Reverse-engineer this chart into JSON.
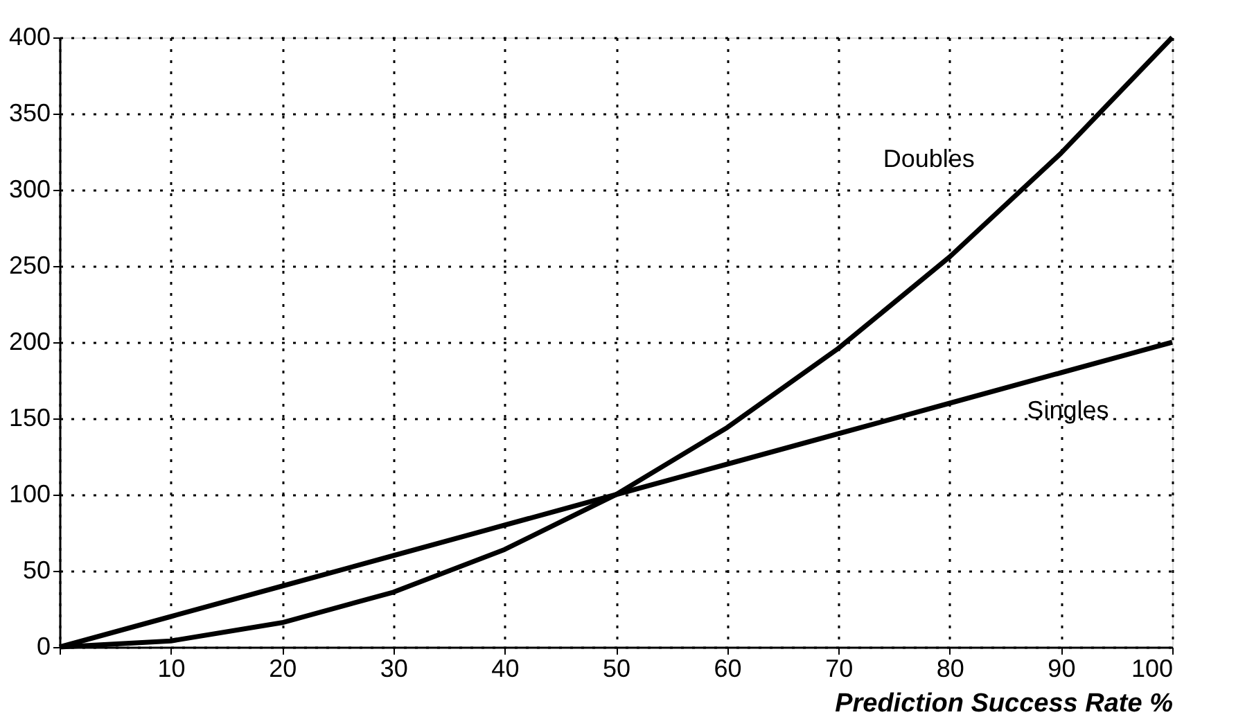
{
  "chart_data": {
    "type": "line",
    "xlabel": "Prediction Success Rate %",
    "x": [
      0,
      10,
      20,
      30,
      40,
      50,
      60,
      70,
      80,
      90,
      100
    ],
    "series": [
      {
        "name": "Singles",
        "color": "#000000",
        "values": [
          0,
          20,
          40,
          60,
          80,
          100,
          120,
          140,
          160,
          180,
          200
        ]
      },
      {
        "name": "Doubles",
        "color": "#000000",
        "values": [
          0,
          4,
          16,
          36,
          64,
          100,
          144,
          196,
          256,
          324,
          400
        ]
      }
    ],
    "xlim": [
      0,
      100
    ],
    "xticks": [
      {
        "value": 0,
        "label": null
      },
      10,
      20,
      30,
      40,
      50,
      60,
      70,
      80,
      90,
      100
    ],
    "ylim": [
      0,
      400
    ],
    "yticks": [
      0,
      50,
      100,
      150,
      200,
      250,
      300,
      350,
      400
    ],
    "grid": true,
    "marker": "none",
    "line_style": "solid"
  }
}
